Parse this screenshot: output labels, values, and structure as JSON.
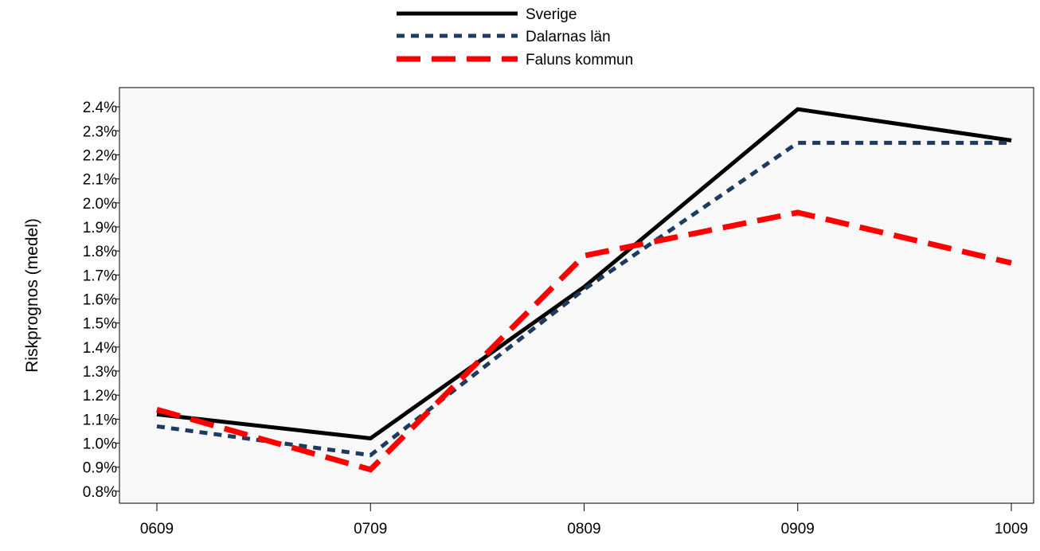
{
  "chart_data": {
    "type": "line",
    "title": "",
    "xlabel": "",
    "ylabel": "Riskprognos (medel)",
    "categories": [
      "0609",
      "0709",
      "0809",
      "0909",
      "1009"
    ],
    "ylim": [
      0.75,
      2.48
    ],
    "yticks": [
      "0.8%",
      "0.9%",
      "1.0%",
      "1.1%",
      "1.2%",
      "1.3%",
      "1.4%",
      "1.5%",
      "1.6%",
      "1.7%",
      "1.8%",
      "1.9%",
      "2.0%",
      "2.1%",
      "2.2%",
      "2.3%",
      "2.4%"
    ],
    "ytick_values": [
      0.8,
      0.9,
      1.0,
      1.1,
      1.2,
      1.3,
      1.4,
      1.5,
      1.6,
      1.7,
      1.8,
      1.9,
      2.0,
      2.1,
      2.2,
      2.3,
      2.4
    ],
    "grid": false,
    "legend_position": "top-center",
    "plot_background": "#f8f8f8",
    "series": [
      {
        "name": "Sverige",
        "values": [
          1.12,
          1.02,
          1.65,
          2.39,
          2.26
        ],
        "color": "#000000",
        "style": "solid"
      },
      {
        "name": "Dalarnas län",
        "values": [
          1.07,
          0.95,
          1.64,
          2.25,
          2.25
        ],
        "color": "#1f3a5f",
        "style": "dotted"
      },
      {
        "name": "Faluns kommun",
        "values": [
          1.14,
          0.89,
          1.78,
          1.96,
          1.75
        ],
        "color": "#ff0000",
        "style": "dashed"
      }
    ]
  }
}
